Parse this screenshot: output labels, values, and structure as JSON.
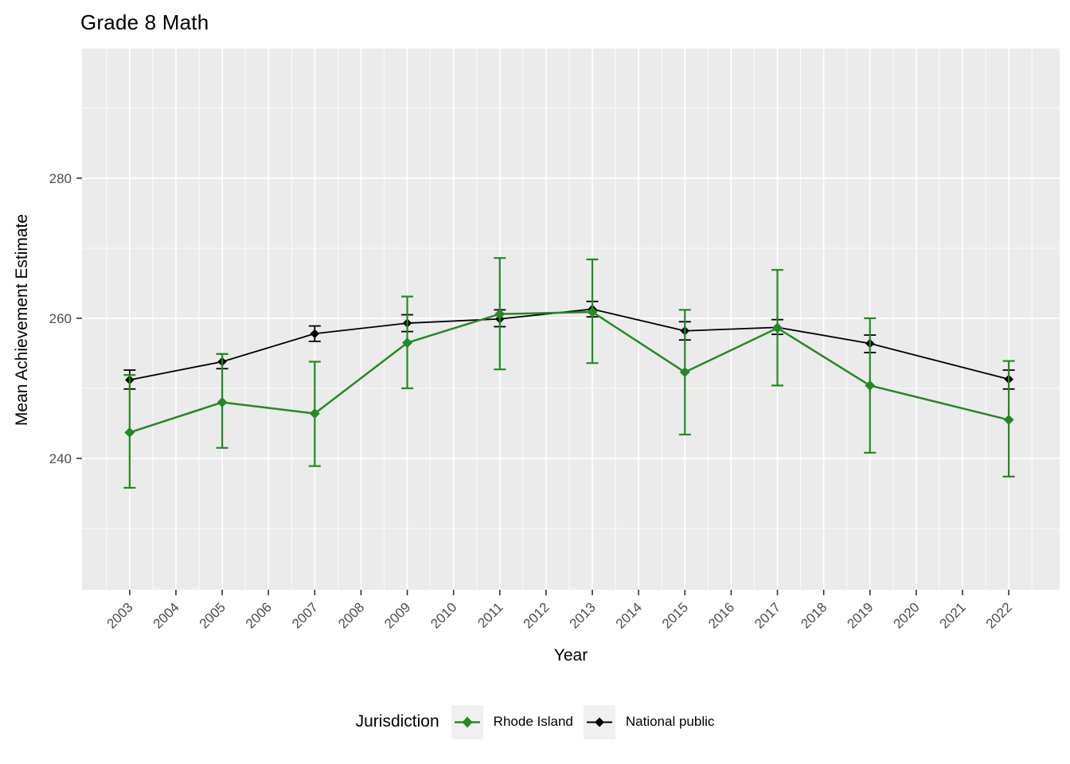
{
  "title": "Grade 8 Math",
  "axes": {
    "x_label": "Year",
    "y_label": "Mean Achievement Estimate"
  },
  "legend": {
    "title": "Jurisdiction",
    "items": [
      "Rhode Island",
      "National public"
    ]
  },
  "colors": {
    "panel_bg": "#EBEBEB",
    "gridline": "#FFFFFF",
    "tick_label": "#4D4D4D",
    "axis_tick": "#333333",
    "legend_key_bg": "#F0F0F0",
    "rhode_island_green": "#228B22",
    "national_public_black": "#000000"
  },
  "chart_data": {
    "type": "line",
    "title": "Grade 8 Math",
    "xlabel": "Year",
    "ylabel": "Mean Achievement Estimate",
    "legend_title": "Jurisdiction",
    "legend_position": "bottom",
    "grid": "white major and minor gridlines on gray panel",
    "x_ticks": [
      2003,
      2004,
      2005,
      2006,
      2007,
      2008,
      2009,
      2010,
      2011,
      2012,
      2013,
      2014,
      2015,
      2016,
      2017,
      2018,
      2019,
      2020,
      2021,
      2022
    ],
    "x_minor_ticks": [
      2002.5,
      2003.5,
      2004.5,
      2005.5,
      2006.5,
      2007.5,
      2008.5,
      2009.5,
      2010.5,
      2011.5,
      2012.5,
      2013.5,
      2014.5,
      2015.5,
      2016.5,
      2017.5,
      2018.5,
      2019.5,
      2020.5,
      2021.5,
      2022.5
    ],
    "y_ticks": [
      240,
      260,
      280
    ],
    "y_minor_ticks": [
      230,
      250,
      270,
      290
    ],
    "xlim": [
      2001.97,
      2023.1
    ],
    "ylim": [
      221.25,
      298.5
    ],
    "x": [
      2003,
      2005,
      2007,
      2009,
      2011,
      2013,
      2015,
      2017,
      2019,
      2022
    ],
    "series": [
      {
        "name": "National public",
        "color": "#000000",
        "marker": "diamond",
        "line_width": 1.8,
        "values": [
          251.2,
          253.8,
          257.8,
          259.3,
          259.9,
          261.3,
          258.2,
          258.7,
          256.4,
          251.3
        ],
        "ci_low": [
          249.9,
          252.8,
          256.7,
          258.1,
          258.8,
          260.2,
          256.9,
          257.7,
          255.1,
          249.9
        ],
        "ci_high": [
          252.6,
          254.9,
          258.9,
          260.5,
          261.2,
          262.4,
          259.5,
          259.8,
          257.6,
          252.6
        ]
      },
      {
        "name": "Rhode Island",
        "color": "#228B22",
        "marker": "diamond",
        "line_width": 2.5,
        "values": [
          243.7,
          248.0,
          246.4,
          256.5,
          260.6,
          260.9,
          252.3,
          258.6,
          250.4,
          245.5
        ],
        "ci_low": [
          235.8,
          241.5,
          238.9,
          250.0,
          252.7,
          253.6,
          243.4,
          250.4,
          240.8,
          237.4
        ],
        "ci_high": [
          251.9,
          254.9,
          253.8,
          263.1,
          268.6,
          268.4,
          261.2,
          266.9,
          260.0,
          253.9
        ]
      }
    ]
  }
}
